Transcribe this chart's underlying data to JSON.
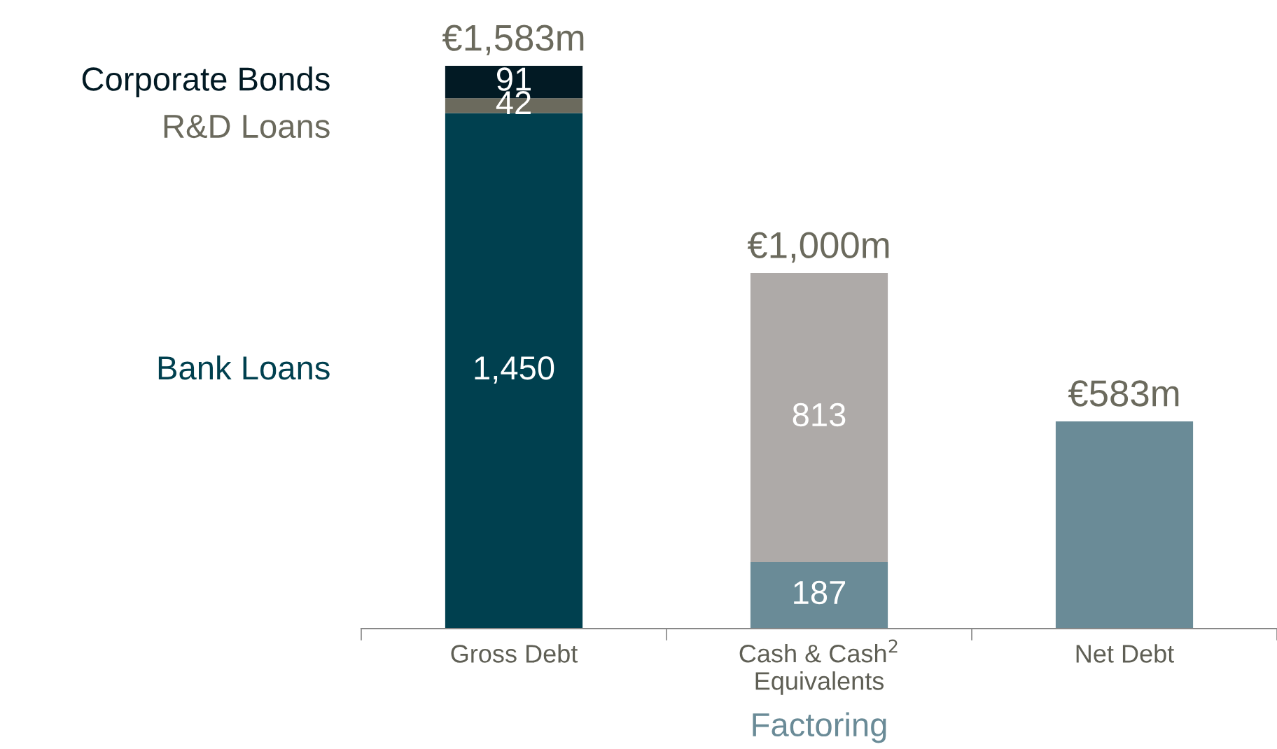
{
  "chart_data": {
    "type": "bar",
    "stacked": true,
    "legend": false,
    "grid": false,
    "categories": [
      "Gross Debt",
      "Cash & Cash$^{2}$\nEquivalents",
      "Net Debt"
    ],
    "series": [
      {
        "name": "Bank Loans",
        "color": "#00404f",
        "values": [
          1450,
          null,
          null
        ],
        "value_labels": [
          "1,450",
          null,
          null
        ]
      },
      {
        "name": "R&D Loans",
        "color": "#6b6a5d",
        "values": [
          42,
          null,
          null
        ],
        "value_labels": [
          "42",
          null,
          null
        ]
      },
      {
        "name": "Corporate Bonds",
        "color": "#021a24",
        "values": [
          91,
          null,
          null
        ],
        "value_labels": [
          "91",
          null,
          null
        ]
      },
      {
        "name": "Factoring",
        "color": "#6a8b97",
        "values": [
          null,
          187,
          null
        ],
        "value_labels": [
          null,
          "187",
          null
        ]
      },
      {
        "color": "#aeaaa8",
        "values": [
          null,
          813,
          null
        ],
        "value_labels": [
          null,
          "813",
          null
        ]
      },
      {
        "color": "#6a8b97",
        "values": [
          null,
          null,
          583
        ],
        "value_labels": [
          null,
          null,
          null
        ]
      }
    ],
    "totals": [
      "€1,583m",
      "€1,000m",
      "€583m"
    ]
  }
}
